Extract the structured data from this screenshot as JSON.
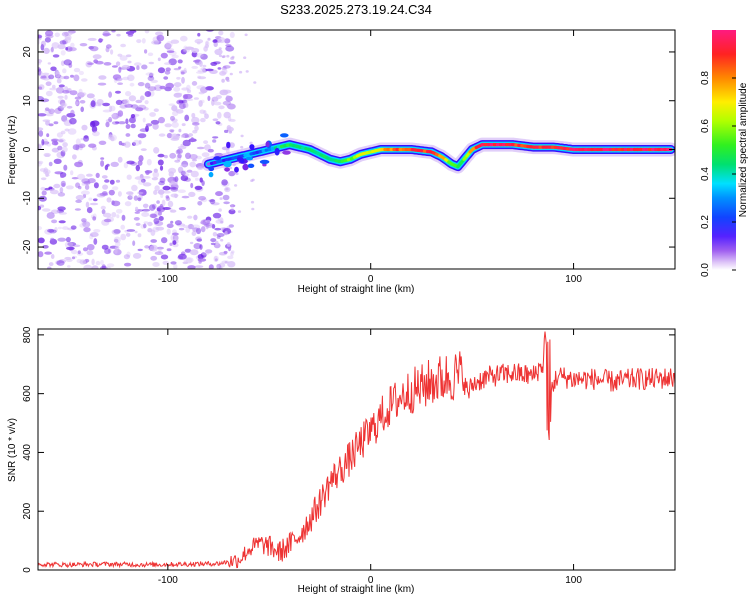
{
  "title": "S233.2025.273.19.24.C34",
  "colors": {
    "snr_line": "#ee3333",
    "spectrogram_noise": "#8a2be2",
    "ridge_peak": "#ff1a33",
    "frame": "#000000"
  },
  "chart_data": [
    {
      "type": "heatmap",
      "name": "spectrogram",
      "xlabel": "Height of straight line (km)",
      "ylabel": "Frequency (Hz)",
      "xlim": [
        -164,
        150
      ],
      "ylim": [
        -24.5,
        24.5
      ],
      "xticks": [
        -100,
        0,
        100
      ],
      "yticks": [
        -20,
        -10,
        0,
        10,
        20
      ],
      "colorbar": {
        "label": "Normalized spectral amplitude",
        "range": [
          0.0,
          1.0
        ],
        "ticks": [
          0.0,
          0.2,
          0.4,
          0.6,
          0.8
        ],
        "colormap": [
          "#ffffff",
          "#e0c8f8",
          "#8a2be2",
          "#3311ff",
          "#0070ff",
          "#00e0ff",
          "#00e070",
          "#40ff20",
          "#d0ff00",
          "#ffe000",
          "#ff8800",
          "#ff1a33",
          "#ff1a80"
        ]
      },
      "noise_region_x": [
        -164,
        -70
      ],
      "ridge": {
        "x": [
          -80,
          -75,
          -70,
          -65,
          -60,
          -55,
          -50,
          -45,
          -40,
          -35,
          -30,
          -25,
          -20,
          -15,
          -10,
          -5,
          0,
          5,
          10,
          20,
          30,
          35,
          40,
          43,
          46,
          50,
          55,
          60,
          70,
          80,
          90,
          100,
          110,
          120,
          130,
          140,
          148
        ],
        "freq": [
          -3,
          -2.5,
          -2,
          -1.5,
          -1,
          -0.5,
          0,
          0.5,
          1,
          0.5,
          0,
          -1,
          -2,
          -2.5,
          -2,
          -1,
          -0.5,
          0,
          0,
          0,
          -0.5,
          -1.5,
          -3,
          -3.5,
          -2,
          0,
          1,
          1,
          1,
          0.5,
          0.5,
          0,
          0,
          0,
          0,
          0,
          0
        ],
        "amplitude": [
          0.2,
          0.3,
          0.25,
          0.3,
          0.35,
          0.3,
          0.4,
          0.5,
          0.5,
          0.45,
          0.5,
          0.5,
          0.5,
          0.55,
          0.6,
          0.65,
          0.7,
          0.75,
          0.85,
          0.9,
          0.9,
          0.8,
          0.55,
          0.5,
          0.6,
          0.85,
          0.95,
          0.95,
          0.9,
          0.95,
          0.9,
          0.95,
          0.95,
          0.95,
          0.95,
          0.95,
          0.95
        ]
      }
    },
    {
      "type": "line",
      "name": "snr",
      "xlabel": "Height of straight line (km)",
      "ylabel": "SNR (10 * v/v)",
      "xlim": [
        -164,
        150
      ],
      "ylim": [
        0,
        820
      ],
      "xticks": [
        -100,
        0,
        100
      ],
      "yticks": [
        0,
        200,
        400,
        600,
        800
      ],
      "series": [
        {
          "name": "SNR",
          "x": [
            -164,
            -150,
            -130,
            -110,
            -90,
            -75,
            -65,
            -60,
            -55,
            -50,
            -45,
            -40,
            -35,
            -30,
            -25,
            -20,
            -15,
            -10,
            -5,
            0,
            5,
            10,
            15,
            20,
            25,
            30,
            35,
            40,
            45,
            48,
            50,
            55,
            60,
            70,
            80,
            85,
            87,
            89,
            92,
            100,
            110,
            120,
            130,
            140,
            150
          ],
          "y": [
            20,
            18,
            20,
            18,
            20,
            22,
            35,
            70,
            90,
            80,
            60,
            85,
            120,
            170,
            230,
            300,
            340,
            380,
            430,
            470,
            520,
            560,
            590,
            610,
            620,
            640,
            650,
            660,
            660,
            600,
            630,
            650,
            660,
            670,
            660,
            700,
            760,
            620,
            660,
            650,
            650,
            640,
            650,
            650,
            655
          ]
        }
      ],
      "annotations": [
        {
          "x": 87,
          "peak": 815,
          "trough": 440,
          "note": "spike"
        }
      ]
    }
  ]
}
